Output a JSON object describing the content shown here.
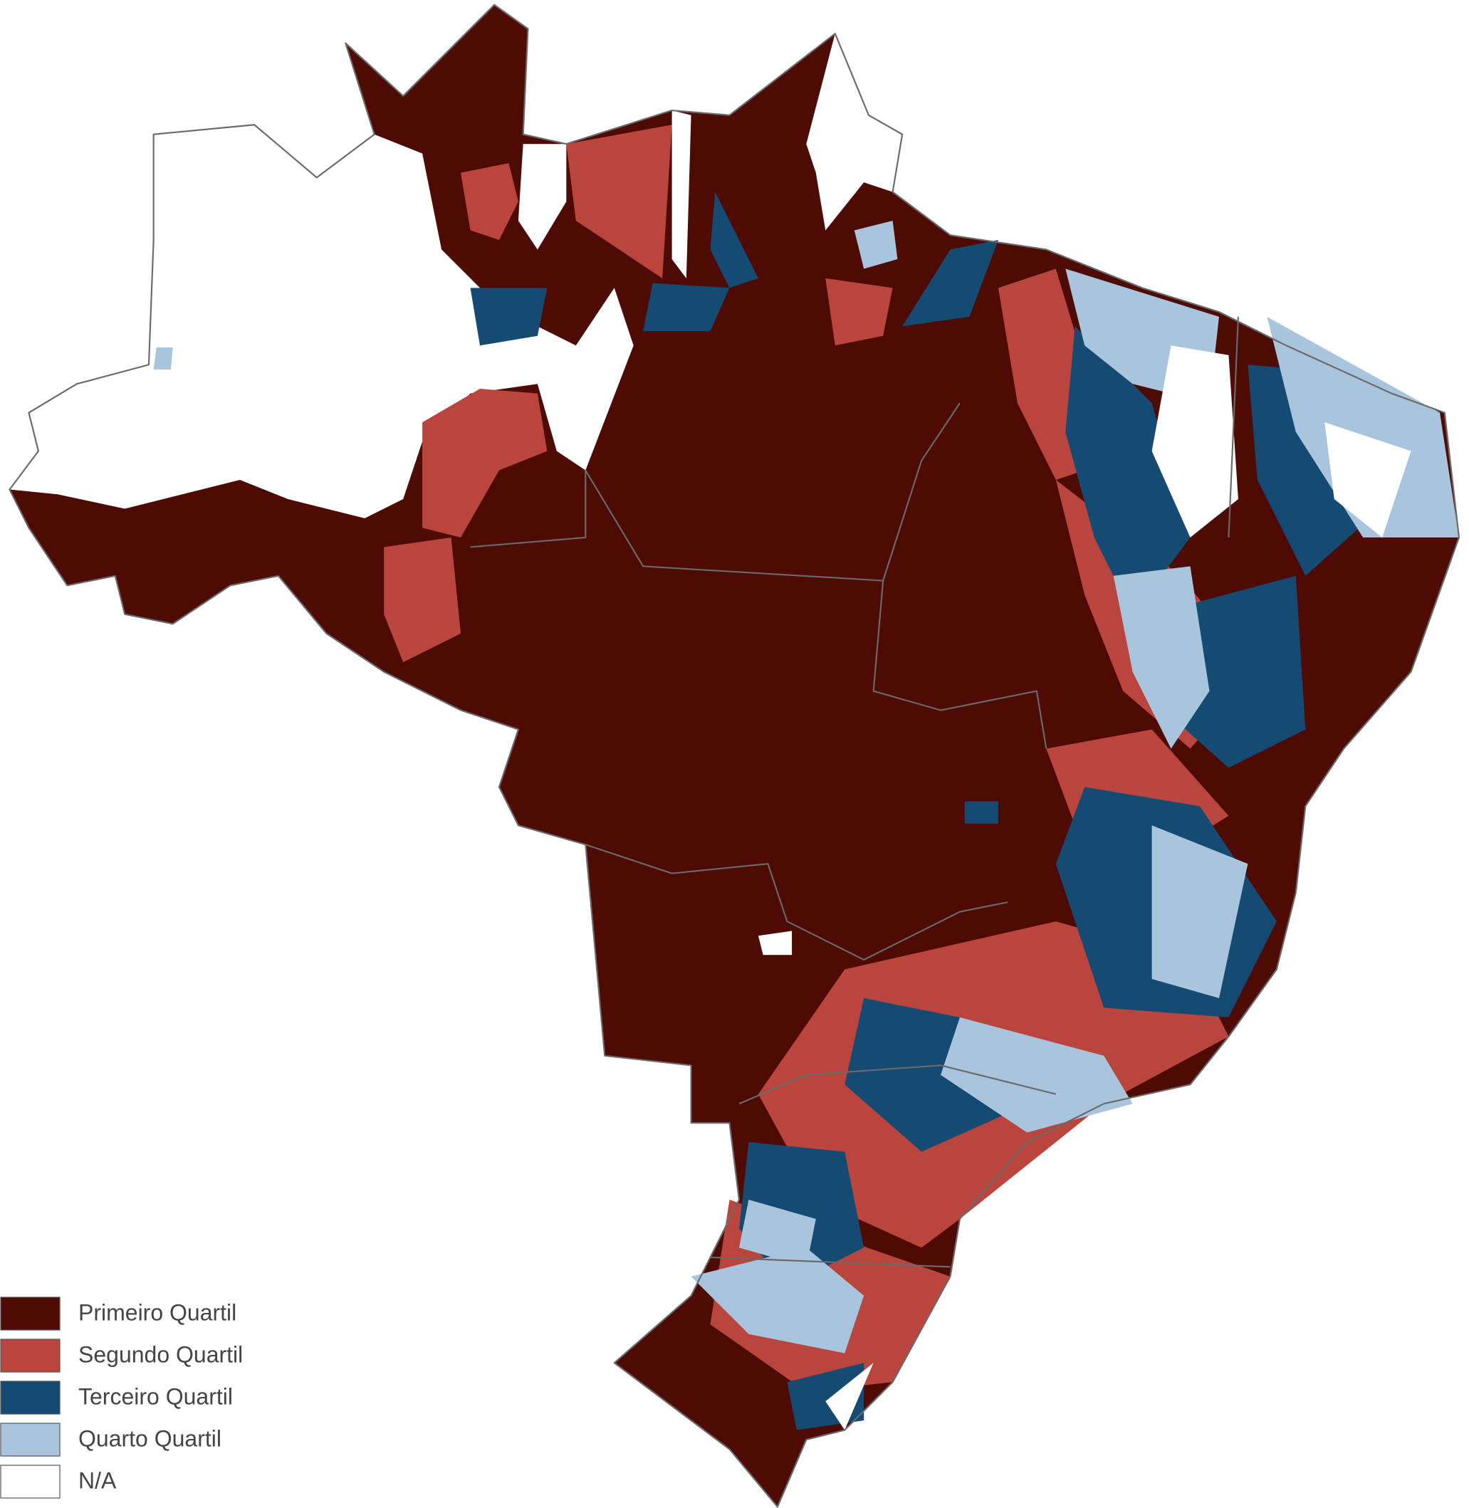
{
  "legend": {
    "items": [
      {
        "label": "Primeiro Quartil",
        "color": "#4d0b04"
      },
      {
        "label": "Segundo Quartil",
        "color": "#b9453d"
      },
      {
        "label": "Terceiro Quartil",
        "color": "#154a72"
      },
      {
        "label": "Quarto Quartil",
        "color": "#a8c5dd"
      },
      {
        "label": "N/A",
        "color": "#ffffff"
      }
    ]
  }
}
